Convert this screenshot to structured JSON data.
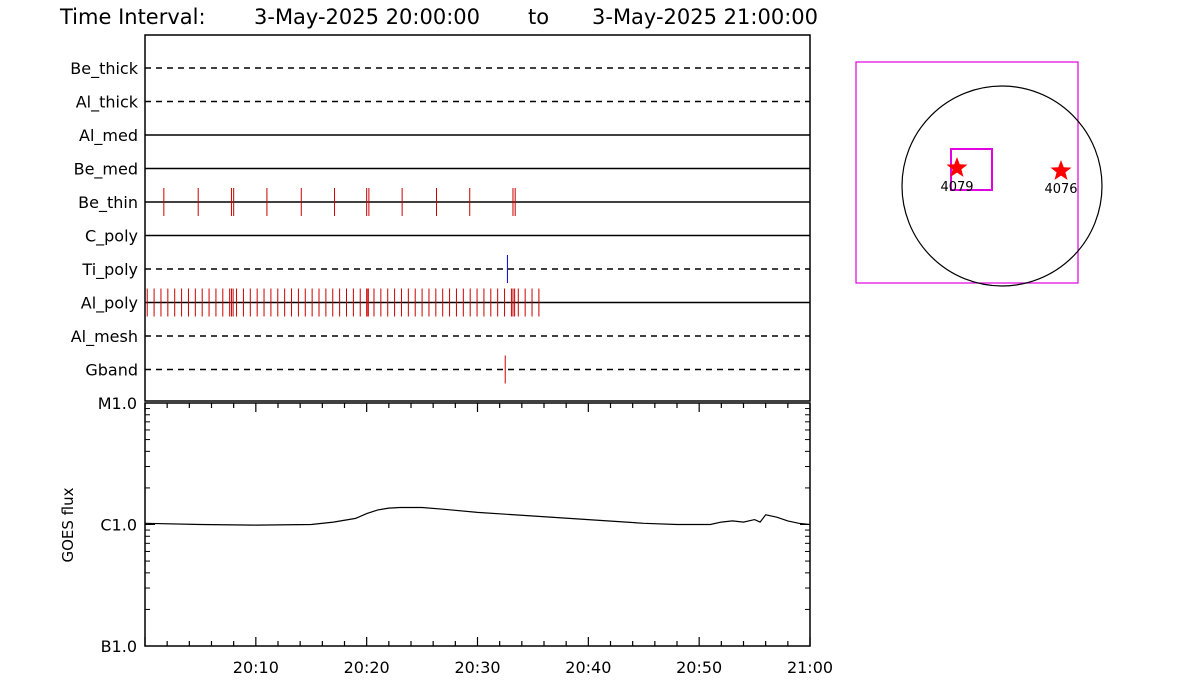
{
  "header": {
    "label": "Time Interval:",
    "start": "3-May-2025 20:00:00",
    "sep": "to",
    "end": "3-May-2025 21:00:00"
  },
  "chart_data": [
    {
      "type": "timeline",
      "x_range_minutes": [
        0,
        60
      ],
      "channels": [
        {
          "name": "Be_thick",
          "style": "dashed",
          "events": []
        },
        {
          "name": "Al_thick",
          "style": "dashed",
          "events": []
        },
        {
          "name": "Al_med",
          "style": "solid",
          "events": []
        },
        {
          "name": "Be_med",
          "style": "solid",
          "events": []
        },
        {
          "name": "Be_thin",
          "style": "solid",
          "color": "#cc0000",
          "events": [
            1.7,
            4.8,
            7.8,
            8.0,
            11.0,
            14.1,
            17.1,
            20.0,
            20.2,
            23.2,
            26.3,
            29.3,
            33.2,
            33.4
          ]
        },
        {
          "name": "C_poly",
          "style": "solid",
          "events": []
        },
        {
          "name": "Ti_poly",
          "style": "dashed",
          "color": "#0000cc",
          "events": [
            32.7
          ]
        },
        {
          "name": "Al_poly",
          "style": "solid",
          "color": "#cc0000",
          "events_range": {
            "start": 0.2,
            "end": 35.6,
            "step": 0.62
          }
        },
        {
          "name": "Al_mesh",
          "style": "dashed",
          "events": []
        },
        {
          "name": "Gband",
          "style": "dashed",
          "color": "#cc0000",
          "events": [
            32.5
          ]
        }
      ]
    },
    {
      "type": "line",
      "ylabel": "GOES flux",
      "yscale": "log",
      "y_ticks": [
        "M1.0",
        "C1.0",
        "B1.0"
      ],
      "x_tick_labels": [
        "20:10",
        "20:20",
        "20:30",
        "20:40",
        "20:50",
        "21:00"
      ],
      "x_minutes": [
        0,
        5,
        10,
        15,
        17,
        19,
        20,
        21,
        22,
        23,
        25,
        27,
        30,
        35,
        40,
        45,
        48,
        51,
        52,
        53,
        54,
        55,
        55.5,
        56,
        57,
        58,
        59,
        60
      ],
      "y_decades": [
        0.01,
        0.0,
        -0.005,
        0.0,
        0.02,
        0.05,
        0.09,
        0.12,
        0.135,
        0.14,
        0.14,
        0.125,
        0.1,
        0.07,
        0.04,
        0.01,
        0.0,
        0.0,
        0.02,
        0.03,
        0.02,
        0.04,
        0.02,
        0.08,
        0.06,
        0.03,
        0.01,
        0.0
      ]
    }
  ],
  "map": {
    "regions": [
      {
        "label": "4079"
      },
      {
        "label": "4076"
      }
    ],
    "box_color": "#e000e0",
    "star_color": "#ff0000"
  }
}
